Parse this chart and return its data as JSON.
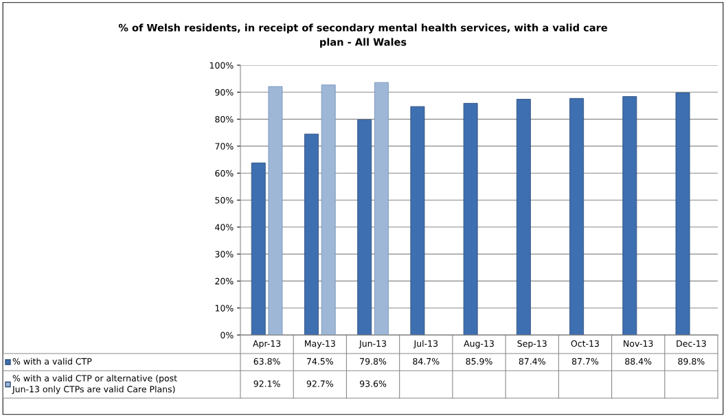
{
  "chart_data": {
    "type": "bar",
    "title": "% of Welsh residents, in receipt of secondary mental health services, with a valid care plan - All Wales",
    "categories": [
      "Apr-13",
      "May-13",
      "Jun-13",
      "Jul-13",
      "Aug-13",
      "Sep-13",
      "Oct-13",
      "Nov-13",
      "Dec-13"
    ],
    "series": [
      {
        "name": "% with a valid CTP",
        "color": "#3e6fb0",
        "values": [
          63.8,
          74.5,
          79.8,
          84.7,
          85.9,
          87.4,
          87.7,
          88.4,
          89.8
        ],
        "value_labels": [
          "63.8%",
          "74.5%",
          "79.8%",
          "84.7%",
          "85.9%",
          "87.4%",
          "87.7%",
          "88.4%",
          "89.8%"
        ]
      },
      {
        "name": "% with a valid CTP or alternative (post Jun-13 only CTPs are valid Care Plans)",
        "color": "#9fb7d6",
        "values": [
          92.1,
          92.7,
          93.6,
          null,
          null,
          null,
          null,
          null,
          null
        ],
        "value_labels": [
          "92.1%",
          "92.7%",
          "93.6%",
          null,
          null,
          null,
          null,
          null,
          null
        ]
      }
    ],
    "ylim": [
      0,
      100
    ],
    "yticks": [
      {
        "value": 0,
        "label": "0%"
      },
      {
        "value": 10,
        "label": "10%"
      },
      {
        "value": 20,
        "label": "20%"
      },
      {
        "value": 30,
        "label": "30%"
      },
      {
        "value": 40,
        "label": "40%"
      },
      {
        "value": 50,
        "label": "50%"
      },
      {
        "value": 60,
        "label": "60%"
      },
      {
        "value": 70,
        "label": "70%"
      },
      {
        "value": 80,
        "label": "80%"
      },
      {
        "value": 90,
        "label": "90%"
      },
      {
        "value": 100,
        "label": "100%"
      }
    ],
    "grid": "y",
    "legend": "bottom",
    "data_labels": true
  }
}
